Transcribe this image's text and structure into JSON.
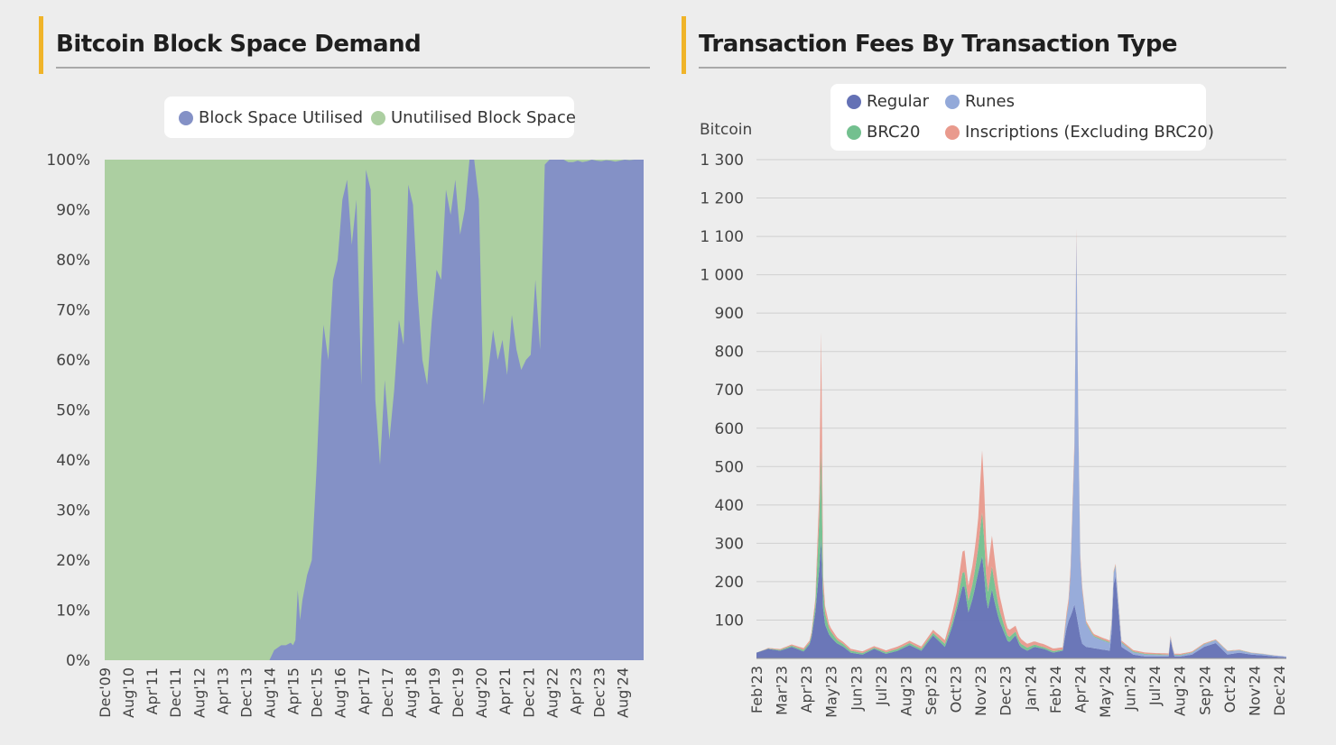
{
  "left": {
    "title": "Bitcoin Block Space Demand",
    "legend": [
      {
        "label": "Block Space Utilised",
        "color": "#8491c6"
      },
      {
        "label": "Unutilised Block Space",
        "color": "#accfa1"
      }
    ],
    "chart_data": {
      "type": "area",
      "title": "Bitcoin Block Space Demand",
      "xlabel": "",
      "ylabel": "",
      "y_ticks": [
        "0%",
        "10%",
        "20%",
        "30%",
        "40%",
        "50%",
        "60%",
        "70%",
        "80%",
        "90%",
        "100%"
      ],
      "ylim": [
        0,
        100
      ],
      "x_ticks": [
        "Dec'09",
        "Aug'10",
        "Apr'11",
        "Dec'11",
        "Aug'12",
        "Apr'13",
        "Dec'13",
        "Aug'14",
        "Apr'15",
        "Dec'15",
        "Aug'16",
        "Apr'17",
        "Dec'17",
        "Aug'18",
        "Apr'19",
        "Dec'19",
        "Aug'20",
        "Apr'21",
        "Dec'21",
        "Aug'22",
        "Apr'23",
        "Dec'23",
        "Aug'24"
      ],
      "stacked": true,
      "series": [
        {
          "name": "Block Space Utilised",
          "color": "#8491c6",
          "x": [
            0,
            6.9,
            7.0,
            7.2,
            7.5,
            7.7,
            7.9,
            8.0,
            8.1,
            8.2,
            8.3,
            8.4,
            8.6,
            8.8,
            9.0,
            9.2,
            9.3,
            9.5,
            9.7,
            9.9,
            10.1,
            10.3,
            10.5,
            10.7,
            10.9,
            11.1,
            11.3,
            11.5,
            11.7,
            11.9,
            12.1,
            12.3,
            12.5,
            12.7,
            12.9,
            13.1,
            13.3,
            13.5,
            13.7,
            13.9,
            14.1,
            14.3,
            14.5,
            14.7,
            14.9,
            15.1,
            15.3,
            15.5,
            15.7,
            15.9,
            16.1,
            16.3,
            16.5,
            16.7,
            16.9,
            17.1,
            17.3,
            17.5,
            17.7,
            17.9,
            18.1,
            18.3,
            18.5,
            18.7,
            18.9,
            19.1,
            19.3,
            19.5,
            19.7,
            19.9,
            20.1,
            20.3,
            20.5,
            20.7,
            20.9,
            21.1,
            21.3,
            21.5,
            21.7,
            21.9,
            22.1,
            22.3,
            22.5,
            23.0
          ],
          "values": [
            0,
            0,
            0,
            2,
            3,
            3,
            3.5,
            3,
            4,
            14,
            8,
            12,
            17,
            20,
            38,
            60,
            67,
            60,
            76,
            80,
            92,
            96,
            83,
            92,
            55,
            98,
            94,
            52,
            39,
            56,
            44,
            54,
            68,
            63,
            95,
            91,
            73,
            60,
            55,
            68,
            78,
            76,
            94,
            89,
            96,
            85,
            90,
            100,
            100,
            92,
            51,
            58,
            66,
            60,
            64,
            57,
            69,
            62,
            58,
            60,
            61,
            76,
            62,
            99,
            100,
            100,
            100,
            100,
            99.5,
            99.5,
            99.8,
            99.5,
            99.7,
            100,
            99.8,
            99.7,
            99.9,
            99.8,
            99.6,
            99.8,
            100,
            99.9,
            100,
            100
          ]
        },
        {
          "name": "Unutilised Block Space",
          "color": "#accfa1",
          "values_note": "100 - utilised"
        }
      ]
    }
  },
  "right": {
    "title": "Transaction Fees By Transaction Type",
    "legend": [
      {
        "label": "Regular",
        "color": "#6471b5"
      },
      {
        "label": "Runes",
        "color": "#93a9d9"
      },
      {
        "label": "BRC20",
        "color": "#73c08f"
      },
      {
        "label": "Inscriptions (Excluding BRC20)",
        "color": "#e99a8d"
      }
    ],
    "chart_data": {
      "type": "area",
      "title": "Transaction Fees By Transaction Type",
      "xlabel": "",
      "ylabel": "Bitcoin",
      "ylim": [
        0,
        1300
      ],
      "y_ticks": [
        "100",
        "200",
        "300",
        "400",
        "500",
        "600",
        "700",
        "800",
        "900",
        "1 000",
        "1 100",
        "1 200",
        "1 300"
      ],
      "x_ticks": [
        "Feb'23",
        "Mar'23",
        "Apr'23",
        "May'23",
        "Jun'23",
        "Jul'23",
        "Aug'23",
        "Sep'23",
        "Oct'23",
        "Nov'23",
        "Dec'23",
        "Jan'24",
        "Feb'24",
        "Apr'24",
        "May'24",
        "Jun'24",
        "Jul'24",
        "Aug'24",
        "Sep'24",
        "Oct'24",
        "Nov'24",
        "Dec'24"
      ],
      "stacked": true,
      "series": [
        {
          "name": "Regular",
          "color": "#6471b5",
          "x": [
            0,
            0.5,
            1,
            1.5,
            2,
            2.3,
            2.5,
            2.7,
            2.75,
            2.8,
            2.9,
            3.1,
            3.4,
            3.7,
            4,
            4.5,
            5,
            5.5,
            6,
            6.5,
            7,
            7.5,
            8,
            8.3,
            8.6,
            8.8,
            9,
            9.2,
            9.4,
            9.6,
            9.8,
            10,
            10.1,
            10.3,
            10.5,
            10.7,
            11,
            11.2,
            11.5,
            11.8,
            12.2,
            12.6,
            13,
            13.2,
            13.4,
            13.5,
            13.6,
            13.8,
            14,
            14.5,
            15,
            15.1,
            15.2,
            15.5,
            16,
            16.5,
            17,
            17.5,
            17.6,
            17.7,
            18,
            18.5,
            19,
            19.5,
            20,
            20.5,
            21,
            21.5,
            22,
            22.5
          ],
          "values": [
            15,
            25,
            20,
            30,
            18,
            40,
            120,
            260,
            310,
            150,
            90,
            60,
            40,
            30,
            15,
            10,
            25,
            12,
            20,
            35,
            20,
            60,
            30,
            80,
            150,
            200,
            120,
            160,
            220,
            270,
            120,
            180,
            150,
            100,
            70,
            40,
            60,
            30,
            20,
            30,
            25,
            15,
            20,
            90,
            120,
            140,
            110,
            40,
            30,
            25,
            20,
            80,
            250,
            30,
            10,
            5,
            5,
            5,
            60,
            5,
            5,
            10,
            30,
            40,
            10,
            15,
            10,
            8,
            5,
            3
          ]
        },
        {
          "name": "Runes",
          "color": "#93a9d9",
          "x": [
            0,
            13.0,
            13.3,
            13.5,
            13.6,
            13.7,
            13.8,
            14.0,
            14.3,
            14.6,
            15.0,
            15.2,
            15.5,
            16.0,
            17.0,
            18.0,
            19.0,
            20.0,
            21.0,
            22.5
          ],
          "values": [
            0,
            0,
            50,
            400,
            1100,
            250,
            150,
            60,
            30,
            25,
            20,
            30,
            10,
            6,
            4,
            3,
            6,
            8,
            4,
            2
          ]
        },
        {
          "name": "BRC20",
          "color": "#73c08f",
          "x": [
            0,
            2.3,
            2.5,
            2.7,
            2.75,
            2.8,
            2.9,
            3.1,
            3.5,
            4,
            5,
            6,
            7,
            8,
            8.5,
            8.8,
            9,
            9.2,
            9.4,
            9.6,
            9.8,
            10,
            10.3,
            10.6,
            11,
            11.5,
            12,
            13,
            22.5
          ],
          "values": [
            0,
            5,
            20,
            150,
            240,
            60,
            30,
            15,
            8,
            5,
            3,
            5,
            5,
            8,
            15,
            40,
            30,
            40,
            60,
            120,
            40,
            60,
            30,
            15,
            10,
            8,
            5,
            3,
            0
          ]
        },
        {
          "name": "Inscriptions (Excluding BRC20)",
          "color": "#e99a8d",
          "x": [
            0,
            2.3,
            2.5,
            2.7,
            2.75,
            2.8,
            2.9,
            3.1,
            3.5,
            4,
            5,
            6,
            7,
            8,
            8.5,
            8.8,
            9,
            9.2,
            9.4,
            9.6,
            9.8,
            10,
            10.3,
            10.6,
            11,
            11.5,
            12,
            13,
            13.5,
            14,
            22.5
          ],
          "values": [
            0,
            5,
            15,
            80,
            300,
            40,
            20,
            10,
            6,
            5,
            4,
            6,
            6,
            10,
            30,
            60,
            40,
            50,
            70,
            170,
            60,
            80,
            40,
            20,
            15,
            10,
            8,
            6,
            20,
            5,
            0
          ]
        }
      ]
    }
  }
}
